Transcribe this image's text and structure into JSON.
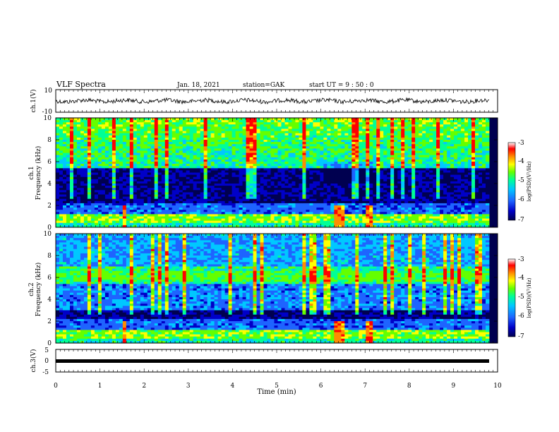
{
  "header": {
    "title": "VLF Spectra",
    "date": "Jan. 18, 2021",
    "station": "station=GAK",
    "start": "start UT =  9 : 50 : 0"
  },
  "chart_data": {
    "type": "heatmap",
    "x": {
      "label": "Time (min)",
      "range": [
        0,
        10
      ],
      "ticks": [
        "0",
        "1",
        "2",
        "3",
        "4",
        "5",
        "6",
        "7",
        "8",
        "9",
        "10"
      ]
    },
    "panels": [
      {
        "id": "ch1_wave",
        "type": "line",
        "ylabel": "ch.1(V)",
        "ylim": [
          -10,
          10
        ],
        "ticks": [
          "10",
          "-10"
        ]
      },
      {
        "id": "ch1_spec",
        "type": "heatmap",
        "ylabel_top": "ch.1",
        "ylabel": "Frequency (kHz)",
        "ylim": [
          0,
          10
        ],
        "ticks": [
          "0",
          "2",
          "4",
          "6",
          "8",
          "10"
        ],
        "colorbar": {
          "label": "log(PSD)(V²/Hz)",
          "range": [
            -7,
            -3
          ],
          "ticks": [
            "-3",
            "-4",
            "-5",
            "-6",
            "-7"
          ]
        }
      },
      {
        "id": "ch2_spec",
        "type": "heatmap",
        "ylabel_top": "ch.2",
        "ylabel": "Frequency (kHz)",
        "ylim": [
          0,
          10
        ],
        "ticks": [
          "0",
          "2",
          "4",
          "6",
          "8",
          "10"
        ],
        "colorbar": {
          "label": "log(PSD)(V²/Hz)",
          "range": [
            -7,
            -3
          ],
          "ticks": [
            "-3",
            "-4",
            "-5",
            "-6",
            "-7"
          ]
        }
      },
      {
        "id": "ch3_wave",
        "type": "line",
        "ylabel": "ch.3(V)",
        "ylim": [
          -5,
          5
        ],
        "ticks": [
          "5",
          "0",
          "-5"
        ]
      }
    ],
    "colormap": [
      "#000050",
      "#0000c8",
      "#1e64ff",
      "#00c8ff",
      "#00ff96",
      "#64ff00",
      "#ffff00",
      "#ff8c00",
      "#ff0000",
      "#ffffff"
    ]
  }
}
